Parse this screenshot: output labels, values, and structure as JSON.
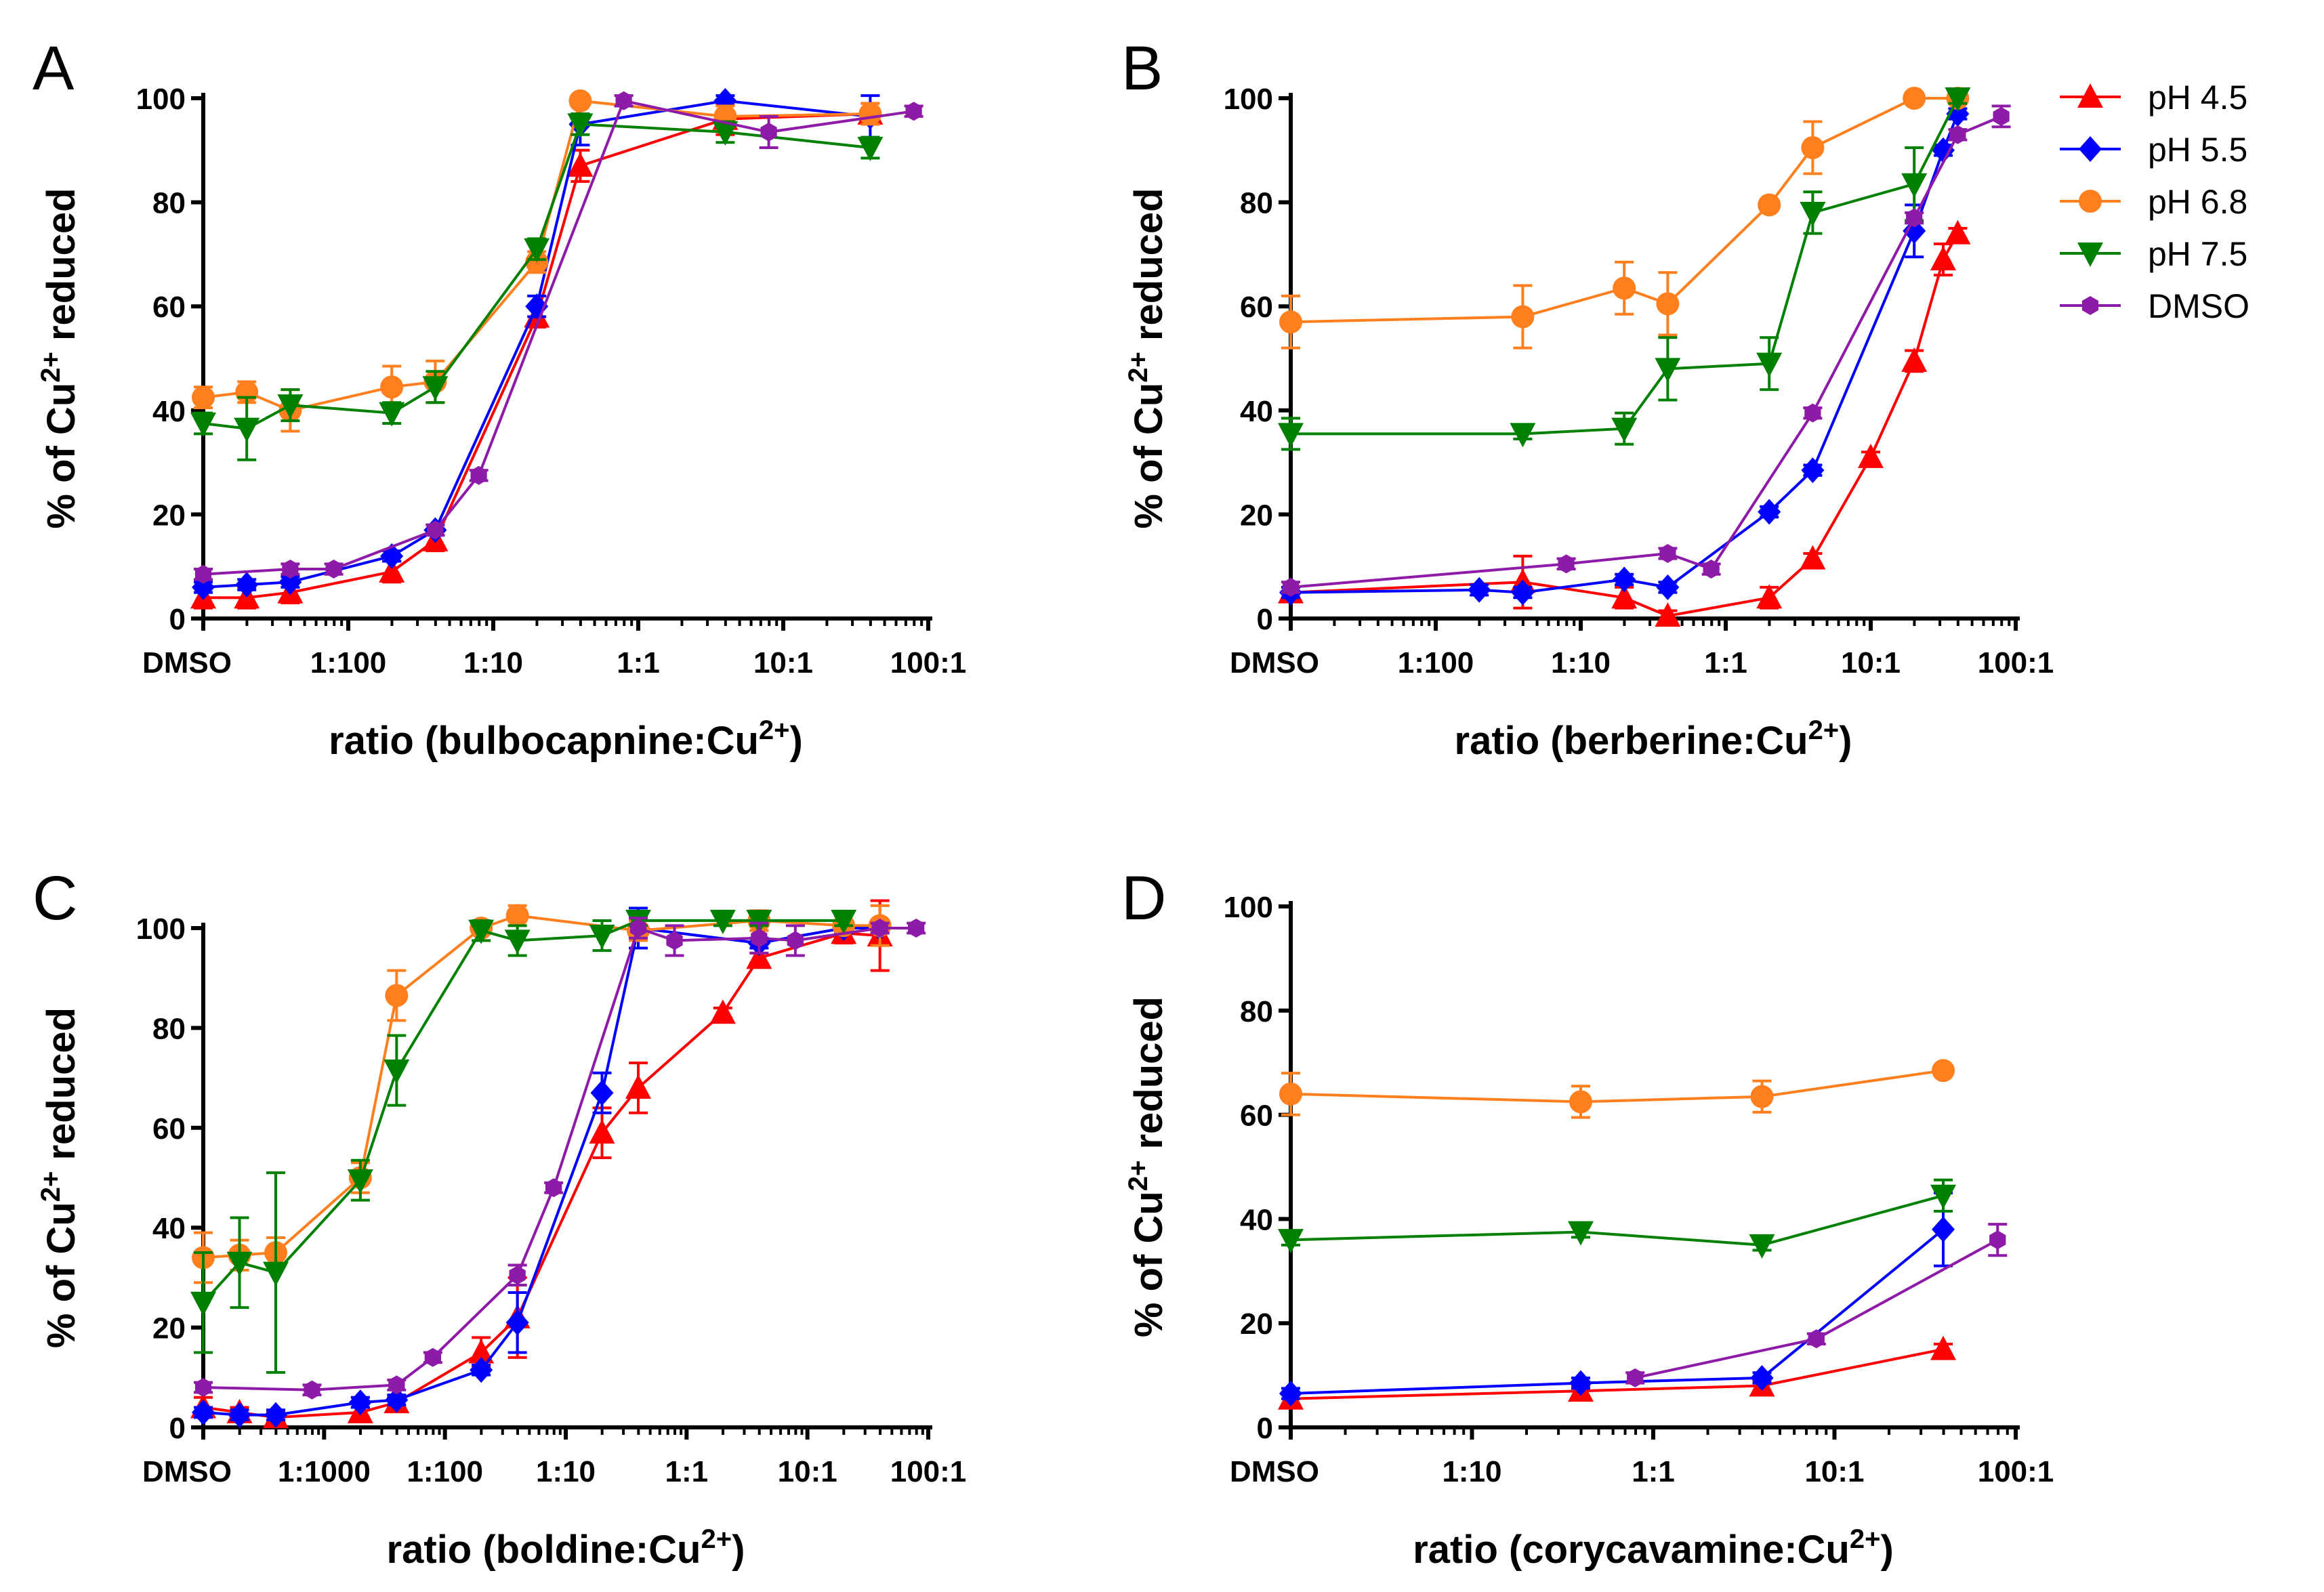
{
  "legend": {
    "entries": [
      {
        "name": "pH 4.5",
        "color": "#ff0000",
        "marker": "triangle-up"
      },
      {
        "name": "pH 5.5",
        "color": "#0000ff",
        "marker": "diamond"
      },
      {
        "name": "pH 6.8",
        "color": "#ff7f1e",
        "marker": "circle"
      },
      {
        "name": "pH 7.5",
        "color": "#008000",
        "marker": "triangle-down"
      },
      {
        "name": "DMSO",
        "color": "#8e1aa8",
        "marker": "hexagon"
      }
    ]
  },
  "chart_data": [
    {
      "panel": "A",
      "type": "line",
      "xlabel": "ratio (bulbocapnine:Cu",
      "xlabel_sup": "2+",
      "xlabel_tail": ")",
      "ylabel": "% of Cu",
      "ylabel_sup": "2+",
      "ylabel_tail": " reduced",
      "x_scale": "log10 (DMSO = no compound)",
      "xlim": [
        -3.0,
        2.0
      ],
      "ylim": [
        0,
        100
      ],
      "yticks": [
        0,
        20,
        40,
        60,
        80,
        100
      ],
      "xticks": [
        {
          "v": -3.0,
          "label": "DMSO"
        },
        {
          "v": -2.0,
          "label": "1:100"
        },
        {
          "v": -1.0,
          "label": "1:10"
        },
        {
          "v": 0.0,
          "label": "1:1"
        },
        {
          "v": 1.0,
          "label": "10:1"
        },
        {
          "v": 2.0,
          "label": "100:1"
        }
      ],
      "series": [
        {
          "name": "pH 4.5",
          "x": [
            -3.0,
            -2.7,
            -2.4,
            -1.7,
            -1.4,
            -0.7,
            -0.4,
            0.6,
            1.6
          ],
          "y": [
            4,
            4,
            5,
            9,
            15,
            58,
            87,
            96,
            97
          ],
          "err": [
            2,
            2,
            2,
            2,
            2,
            2,
            3,
            3,
            2
          ]
        },
        {
          "name": "pH 5.5",
          "x": [
            -3.0,
            -2.7,
            -2.4,
            -1.7,
            -1.4,
            -0.7,
            -0.4,
            0.6,
            1.6
          ],
          "y": [
            6,
            6.5,
            7,
            12,
            17,
            60,
            95,
            99.5,
            96.5
          ],
          "err": [
            1,
            1,
            1,
            1,
            1,
            2,
            4,
            1,
            4
          ]
        },
        {
          "name": "pH 6.8",
          "x": [
            -3.0,
            -2.7,
            -2.4,
            -1.7,
            -1.4,
            -0.7,
            -0.4,
            0.6,
            1.6
          ],
          "y": [
            42.5,
            43.5,
            40,
            44.5,
            45.5,
            68.5,
            99.5,
            96.5,
            97
          ],
          "err": [
            2,
            2,
            4,
            4,
            4,
            2,
            1,
            2,
            2
          ]
        },
        {
          "name": "pH 7.5",
          "x": [
            -3.0,
            -2.7,
            -2.4,
            -1.7,
            -1.4,
            -0.7,
            -0.4,
            0.6,
            1.6
          ],
          "y": [
            37.5,
            36.5,
            41,
            39.5,
            44.5,
            71,
            95,
            93.5,
            90.5
          ],
          "err": [
            2,
            6,
            3,
            2,
            3,
            2,
            2,
            2,
            2
          ]
        },
        {
          "name": "DMSO",
          "x": [
            -3.0,
            -2.4,
            -2.1,
            -1.4,
            -1.1,
            -0.1,
            0.9,
            1.9
          ],
          "y": [
            8.5,
            9.5,
            9.5,
            17,
            27.5,
            99.5,
            93.5,
            97.5
          ],
          "err": [
            1,
            1,
            1,
            1,
            1,
            1,
            3,
            1
          ]
        }
      ]
    },
    {
      "panel": "B",
      "type": "line",
      "xlabel": "ratio (berberine:Cu",
      "xlabel_sup": "2+",
      "xlabel_tail": ")",
      "ylabel": "% of Cu",
      "ylabel_sup": "2+",
      "ylabel_tail": " reduced",
      "x_scale": "log10 (DMSO = no compound)",
      "xlim": [
        -3.0,
        2.0
      ],
      "ylim": [
        0,
        100
      ],
      "yticks": [
        0,
        20,
        40,
        60,
        80,
        100
      ],
      "xticks": [
        {
          "v": -3.0,
          "label": "DMSO"
        },
        {
          "v": -2.0,
          "label": "1:100"
        },
        {
          "v": -1.0,
          "label": "1:10"
        },
        {
          "v": 0.0,
          "label": "1:1"
        },
        {
          "v": 1.0,
          "label": "10:1"
        },
        {
          "v": 2.0,
          "label": "100:1"
        }
      ],
      "series": [
        {
          "name": "pH 4.5",
          "x": [
            -3.0,
            -1.4,
            -0.7,
            -0.4,
            0.3,
            0.6,
            1.0,
            1.3,
            1.5,
            1.6
          ],
          "y": [
            5,
            7,
            4,
            0.5,
            4,
            11.5,
            31,
            49.5,
            69,
            74
          ],
          "err": [
            1,
            5,
            2,
            1,
            2,
            1,
            1,
            2,
            3,
            1
          ]
        },
        {
          "name": "pH 5.5",
          "x": [
            -3.0,
            -1.7,
            -1.4,
            -0.7,
            -0.4,
            0.3,
            0.6,
            1.3,
            1.5,
            1.6
          ],
          "y": [
            5,
            5.5,
            5,
            7.5,
            6,
            20.5,
            28.5,
            74.5,
            90,
            97
          ],
          "err": [
            1,
            1,
            1,
            1,
            1,
            1,
            1,
            5,
            1,
            1
          ]
        },
        {
          "name": "pH 6.8",
          "x": [
            -3.0,
            -1.4,
            -0.7,
            -0.4,
            0.3,
            0.6,
            1.3,
            1.6
          ],
          "y": [
            57,
            58,
            63.5,
            60.5,
            79.5,
            90.5,
            100,
            100
          ],
          "err": [
            5,
            6,
            5,
            6,
            1,
            5,
            1,
            1
          ]
        },
        {
          "name": "pH 7.5",
          "x": [
            -3.0,
            -1.4,
            -0.7,
            -0.4,
            0.3,
            0.6,
            1.3,
            1.6
          ],
          "y": [
            35.5,
            35.5,
            36.5,
            48,
            49,
            78,
            83.5,
            100
          ],
          "err": [
            3,
            1,
            3,
            6,
            5,
            4,
            7,
            1
          ]
        },
        {
          "name": "DMSO",
          "x": [
            -3.0,
            -1.1,
            -0.4,
            -0.1,
            0.6,
            1.3,
            1.6,
            1.9
          ],
          "y": [
            6,
            10.5,
            12.5,
            9.5,
            39.5,
            77,
            93,
            96.5
          ],
          "err": [
            1,
            1,
            1,
            1,
            1,
            1,
            1,
            2
          ]
        }
      ]
    },
    {
      "panel": "C",
      "type": "line",
      "xlabel": "ratio (boldine:Cu",
      "xlabel_sup": "2+",
      "xlabel_tail": ")",
      "ylabel": "% of Cu",
      "ylabel_sup": "2+",
      "ylabel_tail": " reduced",
      "x_scale": "log10 (DMSO = no compound)",
      "xlim": [
        -4.0,
        2.0
      ],
      "ylim": [
        0,
        100
      ],
      "yticks": [
        0,
        20,
        40,
        60,
        80,
        100
      ],
      "xticks": [
        {
          "v": -4.0,
          "label": "DMSO"
        },
        {
          "v": -3.0,
          "label": "1:1000"
        },
        {
          "v": -2.0,
          "label": "1:100"
        },
        {
          "v": -1.0,
          "label": "1:10"
        },
        {
          "v": 0.0,
          "label": "1:1"
        },
        {
          "v": 1.0,
          "label": "10:1"
        },
        {
          "v": 2.0,
          "label": "100:1"
        }
      ],
      "series": [
        {
          "name": "pH 4.5",
          "x": [
            -4.0,
            -3.7,
            -3.4,
            -2.7,
            -2.4,
            -1.7,
            -1.4,
            -0.7,
            -0.4,
            0.3,
            0.6,
            1.3,
            1.6
          ],
          "y": [
            4,
            3,
            2,
            3,
            5,
            15,
            22,
            59,
            68,
            83,
            94,
            99,
            98.5
          ],
          "err": [
            2,
            1,
            1,
            1,
            1,
            3,
            8,
            5,
            5,
            1,
            1,
            2,
            7
          ]
        },
        {
          "name": "pH 5.5",
          "x": [
            -4.0,
            -3.7,
            -3.4,
            -2.7,
            -2.4,
            -1.7,
            -1.4,
            -0.7,
            -0.4,
            0.6,
            1.3,
            1.6
          ],
          "y": [
            3,
            2.5,
            2.5,
            5,
            5.5,
            11.5,
            21,
            67,
            100,
            97,
            100,
            100
          ],
          "err": [
            1,
            1,
            1,
            1,
            1,
            1,
            6,
            4,
            4,
            1,
            1,
            1
          ]
        },
        {
          "name": "pH 6.8",
          "x": [
            -4.0,
            -3.7,
            -3.4,
            -2.7,
            -2.4,
            -1.7,
            -1.4,
            -0.4,
            0.6,
            1.3,
            1.6
          ],
          "y": [
            34,
            34.5,
            35,
            50,
            86.5,
            100,
            102.5,
            99.5,
            101.5,
            100.5,
            100.5
          ],
          "err": [
            5,
            3,
            3,
            3,
            5,
            1,
            2,
            2,
            2,
            1,
            4
          ]
        },
        {
          "name": "pH 7.5",
          "x": [
            -4.0,
            -3.7,
            -3.4,
            -2.7,
            -2.4,
            -1.7,
            -1.4,
            -0.7,
            -0.4,
            0.3,
            0.6,
            1.3
          ],
          "y": [
            25,
            33,
            31,
            49.5,
            71.5,
            99.5,
            97.5,
            98.5,
            101.5,
            101.5,
            101.5,
            101.5
          ],
          "err": [
            10,
            9,
            20,
            4,
            7,
            2,
            3,
            3,
            1,
            1,
            1,
            1
          ]
        },
        {
          "name": "DMSO",
          "x": [
            -4.0,
            -3.1,
            -2.4,
            -2.1,
            -1.4,
            -1.1,
            -0.4,
            -0.1,
            0.6,
            0.9,
            1.6,
            1.9
          ],
          "y": [
            8,
            7.5,
            8.5,
            14,
            30.5,
            48,
            100,
            97.5,
            98,
            97.5,
            100,
            100
          ],
          "err": [
            1,
            1,
            1,
            1,
            2,
            1,
            2,
            3,
            3,
            3,
            1,
            1
          ]
        }
      ]
    },
    {
      "panel": "D",
      "type": "line",
      "xlabel": "ratio (corycavamine:Cu",
      "xlabel_sup": "2+",
      "xlabel_tail": ")",
      "ylabel": "% of Cu",
      "ylabel_sup": "2+",
      "ylabel_tail": " reduced",
      "x_scale": "log10 (DMSO = no compound)",
      "xlim": [
        -2.0,
        2.0
      ],
      "ylim": [
        0,
        100
      ],
      "yticks": [
        0,
        20,
        40,
        60,
        80,
        100
      ],
      "xticks": [
        {
          "v": -2.0,
          "label": "DMSO"
        },
        {
          "v": -1.0,
          "label": "1:10"
        },
        {
          "v": 0.0,
          "label": "1:1"
        },
        {
          "v": 1.0,
          "label": "10:1"
        },
        {
          "v": 2.0,
          "label": "100:1"
        }
      ],
      "series": [
        {
          "name": "pH 4.5",
          "x": [
            -2.0,
            -0.4,
            0.6,
            1.6
          ],
          "y": [
            5.5,
            7,
            8,
            15
          ],
          "err": [
            1,
            1,
            1,
            1
          ]
        },
        {
          "name": "pH 5.5",
          "x": [
            -2.0,
            -0.4,
            0.6,
            1.6
          ],
          "y": [
            6.5,
            8.5,
            9.5,
            38
          ],
          "err": [
            1,
            1,
            1,
            7
          ]
        },
        {
          "name": "pH 6.8",
          "x": [
            -2.0,
            -0.4,
            0.6,
            1.6
          ],
          "y": [
            64,
            62.5,
            63.5,
            68.5
          ],
          "err": [
            4,
            3,
            3,
            1
          ]
        },
        {
          "name": "pH 7.5",
          "x": [
            -2.0,
            -0.4,
            0.6,
            1.6
          ],
          "y": [
            36,
            37.5,
            35,
            44.5
          ],
          "err": [
            1,
            1,
            1,
            3
          ]
        },
        {
          "name": "DMSO",
          "x": [
            -0.1,
            0.9,
            1.9
          ],
          "y": [
            9.5,
            17,
            36
          ],
          "err": [
            1,
            1,
            3
          ]
        }
      ]
    }
  ]
}
